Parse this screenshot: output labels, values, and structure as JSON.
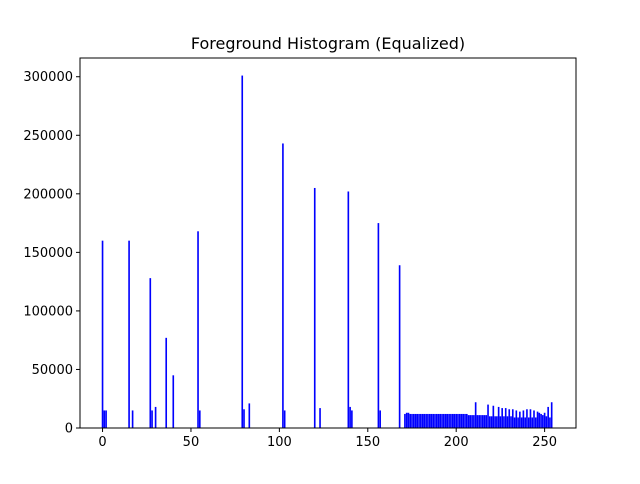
{
  "chart_data": {
    "type": "bar",
    "title": "Foreground Histogram (Equalized)",
    "xlabel": "",
    "ylabel": "",
    "xlim": [
      -12.75,
      267.75
    ],
    "ylim": [
      0,
      316000
    ],
    "xticks": [
      0,
      50,
      100,
      150,
      200,
      250
    ],
    "yticks": [
      0,
      50000,
      100000,
      150000,
      200000,
      250000,
      300000
    ],
    "grid": false,
    "legend": "none",
    "bar_color": "#0000ff",
    "x": [
      0,
      1,
      2,
      15,
      17,
      27,
      28,
      30,
      36,
      40,
      54,
      55,
      79,
      80,
      83,
      102,
      103,
      120,
      123,
      139,
      140,
      141,
      156,
      157,
      168,
      171,
      172,
      173,
      174,
      175,
      176,
      177,
      178,
      179,
      180,
      181,
      182,
      183,
      184,
      185,
      186,
      187,
      188,
      189,
      190,
      191,
      192,
      193,
      194,
      195,
      196,
      197,
      198,
      199,
      200,
      201,
      202,
      203,
      204,
      205,
      206,
      207,
      208,
      209,
      210,
      211,
      212,
      213,
      214,
      215,
      216,
      217,
      218,
      219,
      220,
      221,
      222,
      223,
      224,
      225,
      226,
      227,
      228,
      229,
      230,
      231,
      232,
      233,
      234,
      235,
      236,
      237,
      238,
      239,
      240,
      241,
      242,
      243,
      244,
      245,
      246,
      247,
      248,
      249,
      250,
      251,
      252,
      253,
      254
    ],
    "values": [
      160000,
      15000,
      15000,
      160000,
      15000,
      128000,
      15000,
      18000,
      77000,
      45000,
      168000,
      15000,
      301000,
      16000,
      21000,
      243000,
      15000,
      205000,
      17000,
      202000,
      18000,
      15000,
      175000,
      15000,
      139000,
      12000,
      13000,
      13000,
      12000,
      12000,
      12000,
      12000,
      12000,
      12000,
      12000,
      12000,
      12000,
      12000,
      12000,
      12000,
      12000,
      12000,
      12000,
      12000,
      12000,
      12000,
      12000,
      12000,
      12000,
      12000,
      12000,
      12000,
      12000,
      12000,
      12000,
      12000,
      12000,
      12000,
      12000,
      12000,
      12000,
      11000,
      11000,
      11000,
      11000,
      22000,
      11000,
      11000,
      11000,
      11000,
      11000,
      11000,
      20000,
      10000,
      10000,
      19000,
      10000,
      10000,
      18000,
      10000,
      17000,
      10000,
      17000,
      10000,
      16000,
      10000,
      16000,
      9000,
      15000,
      9000,
      14000,
      9000,
      15000,
      9000,
      16000,
      9000,
      16000,
      9000,
      15000,
      9000,
      14000,
      13000,
      12000,
      11000,
      13000,
      10000,
      18000,
      9000,
      22000
    ]
  }
}
